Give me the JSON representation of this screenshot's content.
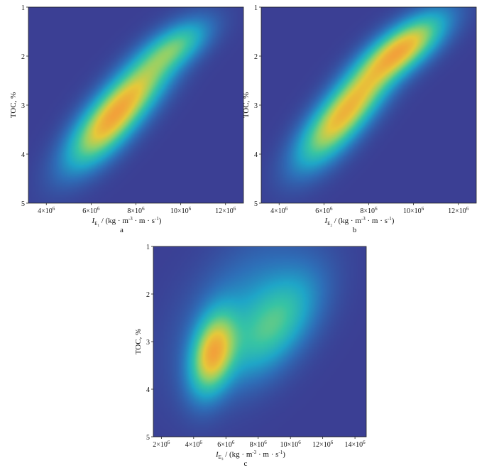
{
  "chart_data": [
    {
      "type": "heatmap",
      "panel_label": "a",
      "xlabel_var": "I",
      "xlabel_sub": "E",
      "xlabel_subsub": "1",
      "xlabel_units": " / (kg · m",
      "xlabel_units_sup1": "-3",
      "xlabel_units_mid": " · m · s",
      "xlabel_units_sup2": "-1",
      "xlabel_units_end": ")",
      "ylabel": "TOC, %",
      "xlim": [
        3200000,
        12800000
      ],
      "ylim": [
        1,
        5
      ],
      "y_inverted": true,
      "x_ticks": [
        {
          "value": 4000000,
          "label": "4×10",
          "exp": "6"
        },
        {
          "value": 6000000,
          "label": "6×10",
          "exp": "6"
        },
        {
          "value": 8000000,
          "label": "8×10",
          "exp": "6"
        },
        {
          "value": 10000000,
          "label": "10×10",
          "exp": "6"
        },
        {
          "value": 12000000,
          "label": "12×10",
          "exp": "6"
        }
      ],
      "y_ticks": [
        {
          "value": 1,
          "label": "1"
        },
        {
          "value": 2,
          "label": "2"
        },
        {
          "value": 3,
          "label": "3"
        },
        {
          "value": 4,
          "label": "4"
        },
        {
          "value": 5,
          "label": "5"
        }
      ],
      "density_peaks": [
        {
          "x": 7500000,
          "y": 2.95,
          "sx": 1400000,
          "sy": 0.7,
          "rho": -0.8,
          "weight": 1.0
        },
        {
          "x": 9800000,
          "y": 1.8,
          "sx": 1000000,
          "sy": 0.35,
          "rho": -0.6,
          "weight": 0.45
        },
        {
          "x": 6400000,
          "y": 3.6,
          "sx": 1000000,
          "sy": 0.5,
          "rho": -0.6,
          "weight": 0.35
        }
      ],
      "colors": {
        "background": "#3b3f94",
        "scale": [
          "#3b3f94",
          "#2e6fb8",
          "#1fa6c8",
          "#37c4a4",
          "#8fd16a",
          "#e6c93a",
          "#f2a23a"
        ]
      }
    },
    {
      "type": "heatmap",
      "panel_label": "b",
      "xlabel_var": "I",
      "xlabel_sub": "E",
      "xlabel_subsub": "2",
      "xlabel_units": " / (kg · m",
      "xlabel_units_sup1": "-3",
      "xlabel_units_mid": " · m · s",
      "xlabel_units_sup2": "-1",
      "xlabel_units_end": ")",
      "ylabel": "TOC, %",
      "xlim": [
        3200000,
        12800000
      ],
      "ylim": [
        1,
        5
      ],
      "y_inverted": true,
      "x_ticks": [
        {
          "value": 4000000,
          "label": "4×10",
          "exp": "6"
        },
        {
          "value": 6000000,
          "label": "6×10",
          "exp": "6"
        },
        {
          "value": 8000000,
          "label": "8×10",
          "exp": "6"
        },
        {
          "value": 10000000,
          "label": "10×10",
          "exp": "6"
        },
        {
          "value": 12000000,
          "label": "12×10",
          "exp": "6"
        }
      ],
      "y_ticks": [
        {
          "value": 1,
          "label": "1"
        },
        {
          "value": 2,
          "label": "2"
        },
        {
          "value": 3,
          "label": "3"
        },
        {
          "value": 4,
          "label": "4"
        },
        {
          "value": 5,
          "label": "5"
        }
      ],
      "density_peaks": [
        {
          "x": 7200000,
          "y": 3.0,
          "sx": 1200000,
          "sy": 0.6,
          "rho": -0.75,
          "weight": 0.85
        },
        {
          "x": 9500000,
          "y": 1.85,
          "sx": 1200000,
          "sy": 0.45,
          "rho": -0.7,
          "weight": 0.95
        },
        {
          "x": 6000000,
          "y": 3.7,
          "sx": 1000000,
          "sy": 0.5,
          "rho": -0.6,
          "weight": 0.3
        }
      ],
      "colors": {
        "background": "#3b3f94",
        "scale": [
          "#3b3f94",
          "#2e6fb8",
          "#1fa6c8",
          "#37c4a4",
          "#8fd16a",
          "#e6c93a",
          "#f2a23a"
        ]
      }
    },
    {
      "type": "heatmap",
      "panel_label": "c",
      "xlabel_var": "I",
      "xlabel_sub": "E",
      "xlabel_subsub": "3",
      "xlabel_units": " / (kg · m",
      "xlabel_units_sup1": "-3",
      "xlabel_units_mid": " · m · s",
      "xlabel_units_sup2": "-1",
      "xlabel_units_end": ")",
      "ylabel": "TOC, %",
      "xlim": [
        1500000,
        14700000
      ],
      "ylim": [
        1,
        5
      ],
      "y_inverted": true,
      "x_ticks": [
        {
          "value": 2000000,
          "label": "2×10",
          "exp": "6"
        },
        {
          "value": 4000000,
          "label": "4×10",
          "exp": "6"
        },
        {
          "value": 6000000,
          "label": "6×10",
          "exp": "6"
        },
        {
          "value": 8000000,
          "label": "8×10",
          "exp": "6"
        },
        {
          "value": 10000000,
          "label": "10×10",
          "exp": "6"
        },
        {
          "value": 12000000,
          "label": "12×10",
          "exp": "6"
        },
        {
          "value": 14000000,
          "label": "14×10",
          "exp": "6"
        }
      ],
      "y_ticks": [
        {
          "value": 1,
          "label": "1"
        },
        {
          "value": 2,
          "label": "2"
        },
        {
          "value": 3,
          "label": "3"
        },
        {
          "value": 4,
          "label": "4"
        },
        {
          "value": 5,
          "label": "5"
        }
      ],
      "density_peaks": [
        {
          "x": 5200000,
          "y": 3.25,
          "sx": 900000,
          "sy": 0.55,
          "rho": -0.3,
          "weight": 1.0
        },
        {
          "x": 9000000,
          "y": 2.65,
          "sx": 1800000,
          "sy": 0.7,
          "rho": -0.55,
          "weight": 0.5
        },
        {
          "x": 7000000,
          "y": 2.3,
          "sx": 2500000,
          "sy": 1.0,
          "rho": -0.5,
          "weight": 0.2
        }
      ],
      "colors": {
        "background": "#3b3f94",
        "scale": [
          "#3b3f94",
          "#2e6fb8",
          "#1fa6c8",
          "#37c4a4",
          "#8fd16a",
          "#e6c93a",
          "#f2a23a"
        ]
      }
    }
  ]
}
